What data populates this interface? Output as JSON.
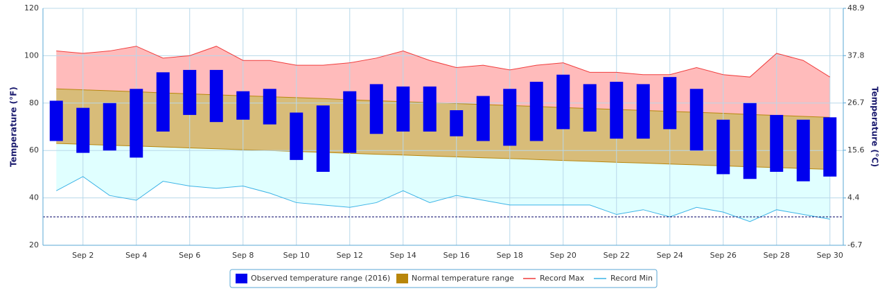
{
  "chart_data": {
    "type": "range",
    "y_axis_title": "Temperature (°F)",
    "y2_axis_title": "Temperature (°C)",
    "categories": [
      null,
      "Sep 2",
      null,
      "Sep 4",
      null,
      "Sep 6",
      null,
      "Sep 8",
      null,
      "Sep 10",
      null,
      "Sep 12",
      null,
      "Sep 14",
      null,
      "Sep 16",
      null,
      "Sep 18",
      null,
      "Sep 20",
      null,
      "Sep 22",
      null,
      "Sep 24",
      null,
      "Sep 26",
      null,
      "Sep 28",
      null,
      "Sep 30"
    ],
    "ylim": [
      20,
      120
    ],
    "yticks": [
      20,
      40,
      60,
      80,
      100,
      120
    ],
    "y2lim": [
      -6.7,
      48.9
    ],
    "y2ticks": [
      -6.7,
      4.4,
      15.6,
      26.7,
      37.8,
      48.9
    ],
    "freezing_line": 32,
    "grid": true,
    "legend": "bottom",
    "series": [
      {
        "name": "Observed temperature range (2016)",
        "type": "columnrange",
        "color": "#0000ee",
        "low": [
          64,
          59,
          60,
          57,
          68,
          75,
          72,
          73,
          71,
          56,
          51,
          59,
          67,
          68,
          68,
          66,
          64,
          62,
          64,
          69,
          68,
          65,
          65,
          69,
          60,
          50,
          48,
          51,
          47,
          49
        ],
        "high": [
          81,
          78,
          80,
          86,
          93,
          94,
          94,
          85,
          86,
          76,
          79,
          85,
          88,
          87,
          87,
          77,
          83,
          86,
          89,
          92,
          88,
          89,
          88,
          91,
          86,
          73,
          80,
          75,
          73,
          74
        ]
      },
      {
        "name": "Normal temperature range",
        "type": "arearange",
        "color": "#b8860b",
        "fill": "#d8bc79",
        "low": [
          63,
          62.6,
          62.2,
          61.9,
          61.5,
          61.1,
          60.7,
          60.3,
          60.0,
          59.6,
          59.2,
          58.8,
          58.4,
          58.1,
          57.7,
          57.3,
          56.9,
          56.6,
          56.2,
          55.8,
          55.4,
          55.0,
          54.7,
          54.3,
          53.9,
          53.5,
          53.1,
          52.8,
          52.4,
          52.0
        ],
        "high": [
          86,
          85.6,
          85.2,
          84.8,
          84.3,
          83.9,
          83.5,
          83.1,
          82.7,
          82.3,
          81.9,
          81.4,
          81.0,
          80.6,
          80.2,
          79.8,
          79.4,
          79.0,
          78.6,
          78.1,
          77.7,
          77.3,
          76.9,
          76.5,
          76.1,
          75.7,
          75.2,
          74.8,
          74.4,
          74.0
        ]
      },
      {
        "name": "Record Max",
        "type": "line",
        "color": "#f03c3c",
        "fill": "#ffbbbb",
        "values": [
          102,
          101,
          102,
          104,
          99,
          100,
          104,
          98,
          98,
          96,
          96,
          97,
          99,
          102,
          98,
          95,
          96,
          94,
          96,
          97,
          93,
          93,
          92,
          92,
          95,
          92,
          91,
          101,
          98,
          91
        ]
      },
      {
        "name": "Record Min",
        "type": "line",
        "color": "#3bb3e6",
        "fill": "#e0ffff",
        "values": [
          43,
          49,
          41,
          39,
          47,
          45,
          44,
          45,
          42,
          38,
          37,
          36,
          38,
          43,
          38,
          41,
          39,
          37,
          37,
          37,
          37,
          33,
          35,
          32,
          36,
          34,
          30,
          35,
          33,
          31
        ]
      }
    ]
  }
}
